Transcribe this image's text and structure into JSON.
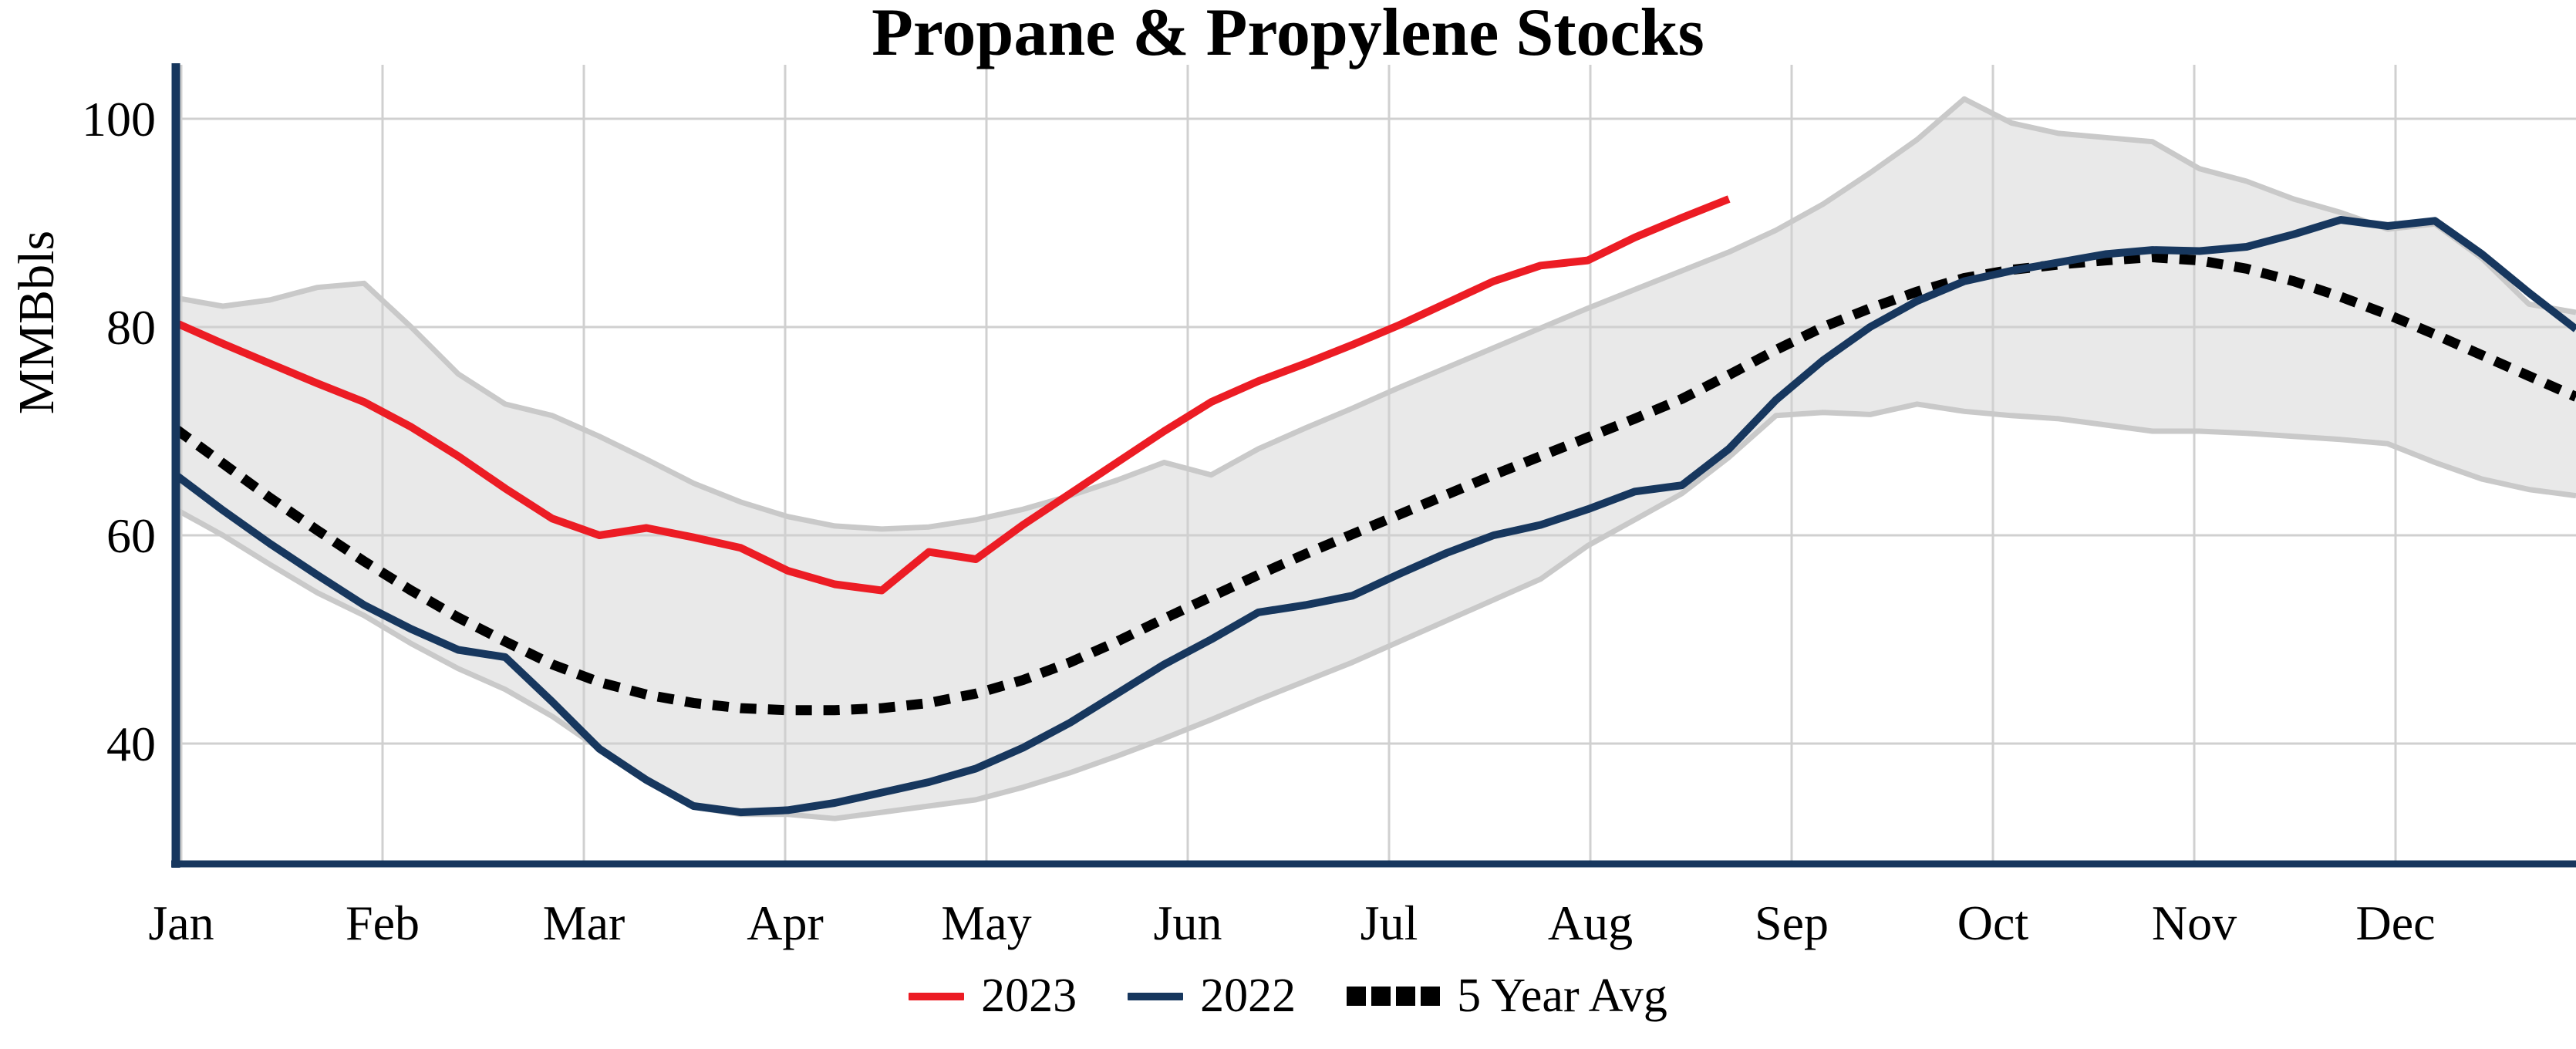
{
  "chart_data": {
    "type": "line",
    "title": "Propane & Propylene Stocks",
    "ylabel": "MMBbls",
    "x_tick_labels": [
      "Jan",
      "Feb",
      "Mar",
      "Apr",
      "May",
      "Jun",
      "Jul",
      "Aug",
      "Sep",
      "Oct",
      "Nov",
      "Dec"
    ],
    "y_ticks": [
      100,
      80,
      60,
      40
    ],
    "ylim": [
      28,
      105.5
    ],
    "x_resolution": "weekly (week 1 = early Jan, 52 weeks across Jan-Dec)",
    "grid": {
      "horizontal_at": [
        100,
        80,
        60,
        40
      ],
      "vertical_at_each_month": true,
      "color": "#d0d0d0"
    },
    "legend_position": "bottom-center",
    "legend_entries": [
      "2023",
      "2022",
      "5 Year Avg"
    ],
    "series": [
      {
        "name": "2023",
        "color": "#ec1c24",
        "style": "solid",
        "weeks_covered": "Jan through late Aug (34 weeks)",
        "values": [
          80.4,
          78.4,
          76.5,
          74.6,
          72.8,
          70.4,
          67.6,
          64.5,
          61.6,
          60.0,
          60.7,
          59.8,
          58.8,
          56.6,
          55.3,
          54.7,
          58.4,
          57.7,
          61.0,
          64.0,
          67.0,
          70.0,
          72.8,
          74.8,
          76.5,
          78.3,
          80.2,
          82.3,
          84.4,
          85.9,
          86.4,
          88.6,
          90.5,
          92.3
        ]
      },
      {
        "name": "2022",
        "color": "#17375e",
        "style": "solid",
        "weeks_covered": "full year (52 weeks)",
        "values": [
          65.8,
          62.4,
          59.2,
          56.2,
          53.3,
          51.0,
          49.0,
          48.3,
          44.0,
          39.5,
          36.5,
          34.0,
          33.4,
          33.6,
          34.3,
          35.3,
          36.3,
          37.6,
          39.6,
          42.0,
          44.8,
          47.6,
          50.0,
          52.6,
          53.3,
          54.2,
          56.3,
          58.3,
          60.0,
          61.0,
          62.5,
          64.2,
          64.8,
          68.3,
          73.0,
          76.8,
          80.0,
          82.5,
          84.4,
          85.4,
          86.2,
          87.0,
          87.4,
          87.3,
          87.7,
          88.9,
          90.3,
          89.7,
          90.2,
          87.0,
          83.3,
          79.8
        ]
      },
      {
        "name": "5 Year Avg",
        "color": "#000000",
        "style": "dotted",
        "weeks_covered": "full year (52 weeks)",
        "values": [
          70.2,
          66.9,
          63.6,
          60.5,
          57.5,
          54.7,
          52.1,
          49.8,
          47.6,
          45.9,
          44.7,
          43.9,
          43.4,
          43.2,
          43.2,
          43.4,
          43.9,
          44.8,
          46.1,
          47.8,
          49.8,
          52.0,
          54.1,
          56.2,
          58.2,
          60.1,
          62.0,
          63.9,
          65.8,
          67.6,
          69.4,
          71.2,
          73.1,
          75.4,
          77.8,
          80.0,
          81.8,
          83.4,
          84.7,
          85.5,
          86.0,
          86.4,
          86.7,
          86.4,
          85.6,
          84.4,
          82.9,
          81.2,
          79.3,
          77.3,
          75.3,
          73.3
        ]
      }
    ],
    "range_band": {
      "name": "5-year range (shaded)",
      "fill": "#e9e9e9",
      "edge": "#c9c9c9",
      "top": [
        82.8,
        82.0,
        82.6,
        83.8,
        84.2,
        80.0,
        75.5,
        72.6,
        71.5,
        69.5,
        67.3,
        65.0,
        63.2,
        61.8,
        60.9,
        60.6,
        60.8,
        61.5,
        62.5,
        63.8,
        65.3,
        67.0,
        65.8,
        68.3,
        70.3,
        72.2,
        74.2,
        76.1,
        78.0,
        79.9,
        81.8,
        83.6,
        85.4,
        87.2,
        89.3,
        91.8,
        94.8,
        98.0,
        101.9,
        99.6,
        98.6,
        98.2,
        97.8,
        95.2,
        94.0,
        92.3,
        91.0,
        89.4,
        89.9,
        86.6,
        82.2,
        81.4
      ],
      "bottom": [
        62.5,
        60.0,
        57.2,
        54.5,
        52.3,
        49.6,
        47.2,
        45.2,
        42.6,
        39.5,
        36.4,
        33.9,
        33.2,
        33.2,
        32.8,
        33.4,
        34.0,
        34.6,
        35.8,
        37.2,
        38.8,
        40.5,
        42.3,
        44.2,
        46.0,
        47.8,
        49.8,
        51.8,
        53.8,
        55.8,
        59.0,
        61.5,
        64.0,
        67.5,
        71.5,
        71.8,
        71.6,
        72.6,
        71.9,
        71.5,
        71.2,
        70.6,
        70.0,
        70.0,
        69.8,
        69.5,
        69.2,
        68.8,
        67.0,
        65.4,
        64.4,
        63.8
      ]
    },
    "axis_color": "#17375e",
    "text_color": "#000000",
    "background": "#ffffff"
  }
}
